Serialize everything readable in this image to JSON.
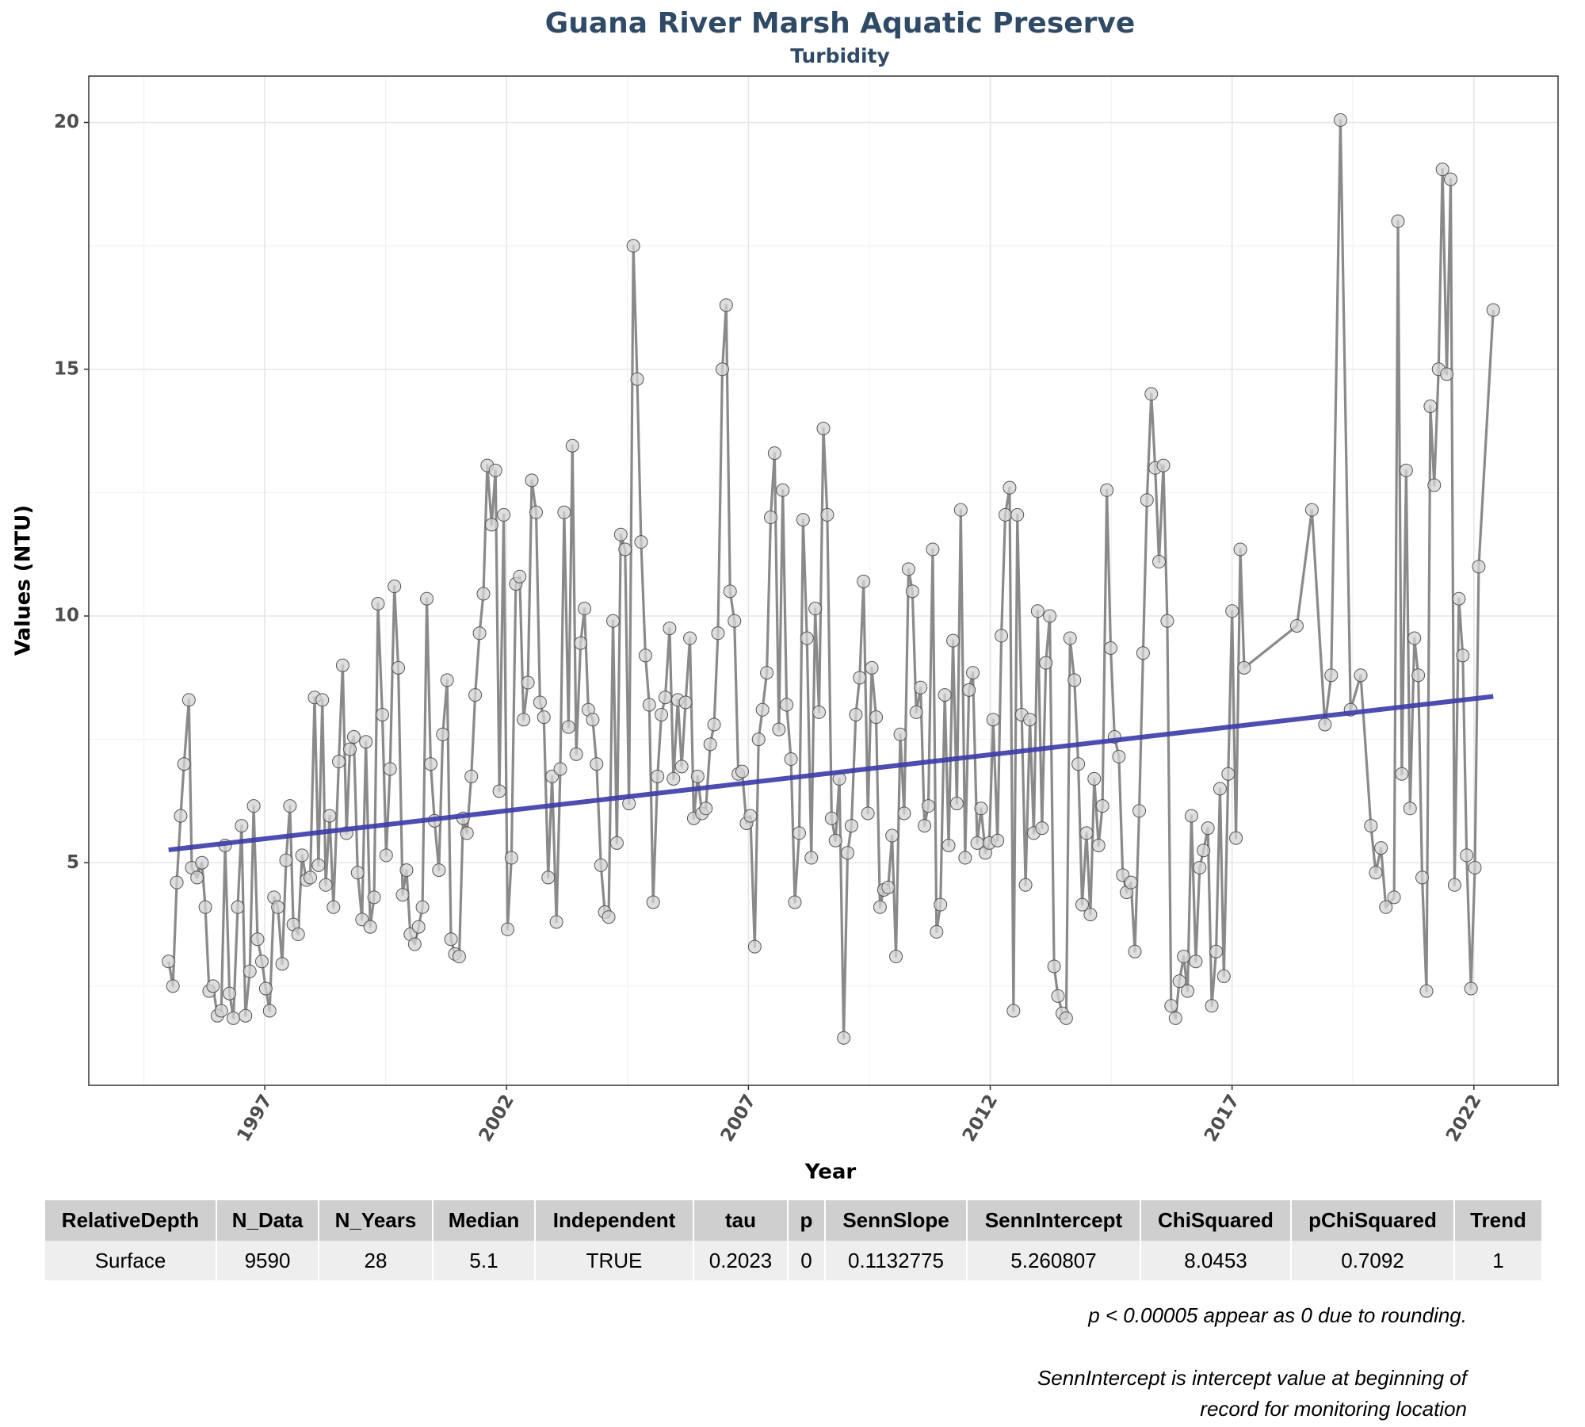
{
  "chart_data": {
    "type": "line",
    "title": "Guana River Marsh Aquatic Preserve",
    "subtitle": "Turbidity",
    "x_label": "Year",
    "y_label": "Values (NTU)",
    "color": "#8a8a8a",
    "marker_color": "#d3d3d3",
    "grid": true,
    "xlim": [
      1993.36,
      2023.74
    ],
    "ylim": [
      0.49,
      20.94
    ],
    "xticks": [
      1997,
      2002,
      2007,
      2012,
      2017,
      2022
    ],
    "yticks": [
      5,
      10,
      15,
      20
    ],
    "x": [
      1995.01,
      1995.1,
      1995.18,
      1995.26,
      1995.33,
      1995.43,
      1995.49,
      1995.6,
      1995.7,
      1995.77,
      1995.85,
      1995.93,
      1996.02,
      1996.1,
      1996.18,
      1996.27,
      1996.35,
      1996.44,
      1996.52,
      1996.6,
      1996.69,
      1996.77,
      1996.85,
      1996.94,
      1997.02,
      1997.1,
      1997.19,
      1997.27,
      1997.36,
      1997.44,
      1997.52,
      1997.59,
      1997.69,
      1997.77,
      1997.86,
      1997.94,
      1998.03,
      1998.11,
      1998.19,
      1998.26,
      1998.34,
      1998.42,
      1998.53,
      1998.61,
      1998.69,
      1998.76,
      1998.84,
      1998.92,
      1999.01,
      1999.09,
      1999.18,
      1999.26,
      1999.34,
      1999.43,
      1999.51,
      1999.59,
      1999.68,
      1999.76,
      1999.85,
      1999.93,
      2000.01,
      2000.1,
      2000.18,
      2000.26,
      2000.35,
      2000.43,
      2000.51,
      2000.6,
      2000.68,
      2000.77,
      2000.85,
      2000.93,
      2001.02,
      2001.1,
      2001.18,
      2001.27,
      2001.35,
      2001.44,
      2001.52,
      2001.6,
      2001.69,
      2001.77,
      2001.85,
      2001.94,
      2002.02,
      2002.1,
      2002.19,
      2002.27,
      2002.35,
      2002.44,
      2002.52,
      2002.61,
      2002.69,
      2002.77,
      2002.86,
      2002.94,
      2003.03,
      2003.11,
      2003.19,
      2003.28,
      2003.36,
      2003.44,
      2003.53,
      2003.61,
      2003.69,
      2003.78,
      2003.86,
      2003.95,
      2004.03,
      2004.11,
      2004.2,
      2004.28,
      2004.36,
      2004.45,
      2004.53,
      2004.62,
      2004.7,
      2004.78,
      2004.87,
      2004.95,
      2005.03,
      2005.12,
      2005.2,
      2005.28,
      2005.37,
      2005.45,
      2005.54,
      2005.62,
      2005.7,
      2005.79,
      2005.87,
      2005.95,
      2006.04,
      2006.12,
      2006.21,
      2006.29,
      2006.37,
      2006.46,
      2006.54,
      2006.62,
      2006.71,
      2006.79,
      2006.87,
      2006.96,
      2007.04,
      2007.13,
      2007.21,
      2007.29,
      2007.38,
      2007.46,
      2007.54,
      2007.63,
      2007.71,
      2007.79,
      2007.88,
      2007.96,
      2008.05,
      2008.13,
      2008.21,
      2008.3,
      2008.38,
      2008.46,
      2008.55,
      2008.63,
      2008.72,
      2008.8,
      2008.88,
      2008.97,
      2009.05,
      2009.13,
      2009.22,
      2009.3,
      2009.38,
      2009.47,
      2009.55,
      2009.64,
      2009.72,
      2009.8,
      2009.89,
      2009.97,
      2010.05,
      2010.14,
      2010.22,
      2010.31,
      2010.39,
      2010.47,
      2010.56,
      2010.64,
      2010.72,
      2010.81,
      2010.89,
      2010.97,
      2011.06,
      2011.14,
      2011.23,
      2011.31,
      2011.39,
      2011.48,
      2011.56,
      2011.64,
      2011.73,
      2011.81,
      2011.9,
      2011.98,
      2012.06,
      2012.15,
      2012.23,
      2012.31,
      2012.4,
      2012.48,
      2012.56,
      2012.65,
      2012.73,
      2012.82,
      2012.9,
      2012.98,
      2013.07,
      2013.15,
      2013.23,
      2013.32,
      2013.4,
      2013.49,
      2013.57,
      2013.65,
      2013.74,
      2013.82,
      2013.9,
      2013.99,
      2014.07,
      2014.15,
      2014.24,
      2014.32,
      2014.41,
      2014.49,
      2014.57,
      2014.66,
      2014.74,
      2014.82,
      2014.91,
      2014.99,
      2015.08,
      2015.16,
      2015.24,
      2015.33,
      2015.41,
      2015.49,
      2015.58,
      2015.66,
      2015.74,
      2015.83,
      2015.91,
      2016.0,
      2016.08,
      2016.16,
      2016.25,
      2016.33,
      2016.41,
      2016.5,
      2016.58,
      2016.67,
      2016.75,
      2016.83,
      2016.92,
      2017.0,
      2017.08,
      2017.17,
      2017.25,
      2018.34,
      2018.65,
      2018.92,
      2019.05,
      2019.24,
      2019.45,
      2019.66,
      2019.87,
      2019.97,
      2020.08,
      2020.18,
      2020.35,
      2020.43,
      2020.51,
      2020.6,
      2020.68,
      2020.77,
      2020.85,
      2020.93,
      2021.02,
      2021.1,
      2021.18,
      2021.27,
      2021.35,
      2021.44,
      2021.52,
      2021.6,
      2021.69,
      2021.77,
      2021.85,
      2021.94,
      2022.02,
      2022.1,
      2022.4
    ],
    "values": [
      3.0,
      2.5,
      4.6,
      5.95,
      7.0,
      8.3,
      4.9,
      4.7,
      5.0,
      4.1,
      2.4,
      2.5,
      1.9,
      2.0,
      5.35,
      2.35,
      1.85,
      4.1,
      5.75,
      1.9,
      2.8,
      6.15,
      3.45,
      3.0,
      2.45,
      2.0,
      4.3,
      4.1,
      2.95,
      5.05,
      6.15,
      3.75,
      3.55,
      5.15,
      4.65,
      4.7,
      8.35,
      4.95,
      8.3,
      4.55,
      5.95,
      4.1,
      7.05,
      9.0,
      5.6,
      7.3,
      7.55,
      4.8,
      3.85,
      7.45,
      3.7,
      4.3,
      10.25,
      8.0,
      5.15,
      6.9,
      10.6,
      8.95,
      4.35,
      4.85,
      3.55,
      3.35,
      3.7,
      4.1,
      10.35,
      7.0,
      5.85,
      4.85,
      7.6,
      8.7,
      3.45,
      3.15,
      3.1,
      5.9,
      5.6,
      6.75,
      8.4,
      9.65,
      10.45,
      13.05,
      11.85,
      12.95,
      6.45,
      12.05,
      3.65,
      5.1,
      10.65,
      10.8,
      7.9,
      8.65,
      12.75,
      12.1,
      8.25,
      7.95,
      4.7,
      6.75,
      3.8,
      6.9,
      12.1,
      7.75,
      13.45,
      7.2,
      9.45,
      10.15,
      8.1,
      7.9,
      7.0,
      4.95,
      4.0,
      3.9,
      9.9,
      5.4,
      11.65,
      11.35,
      6.2,
      17.5,
      14.8,
      11.5,
      9.2,
      8.2,
      4.2,
      6.75,
      8.0,
      8.35,
      9.75,
      6.7,
      8.3,
      6.95,
      8.25,
      9.55,
      5.9,
      6.75,
      6.0,
      6.1,
      7.4,
      7.8,
      9.65,
      15.0,
      16.3,
      10.5,
      9.9,
      6.8,
      6.85,
      5.8,
      5.95,
      3.3,
      7.5,
      8.1,
      8.85,
      12.0,
      13.3,
      7.7,
      12.55,
      8.2,
      7.1,
      4.2,
      5.6,
      11.95,
      9.55,
      5.1,
      10.15,
      8.05,
      13.8,
      12.05,
      5.9,
      5.45,
      6.7,
      1.45,
      5.2,
      5.75,
      8.0,
      8.75,
      10.7,
      6.0,
      8.95,
      7.95,
      4.1,
      4.45,
      4.5,
      5.55,
      3.1,
      7.6,
      6.0,
      10.95,
      10.5,
      8.05,
      8.55,
      5.75,
      6.15,
      11.35,
      3.6,
      4.15,
      8.4,
      5.35,
      9.5,
      6.2,
      12.15,
      5.1,
      8.5,
      8.85,
      5.4,
      6.1,
      5.2,
      5.4,
      7.9,
      5.45,
      9.6,
      12.05,
      12.6,
      2.0,
      12.05,
      8.0,
      4.55,
      7.9,
      5.6,
      10.1,
      5.7,
      9.05,
      10.0,
      2.9,
      2.3,
      1.95,
      1.85,
      9.55,
      8.7,
      7.0,
      4.15,
      5.6,
      3.95,
      6.7,
      5.35,
      6.15,
      12.55,
      9.35,
      7.55,
      7.15,
      4.75,
      4.4,
      4.6,
      3.2,
      6.05,
      9.25,
      12.35,
      14.5,
      13.0,
      11.1,
      13.05,
      9.9,
      2.1,
      1.85,
      2.6,
      3.1,
      2.4,
      5.95,
      3.0,
      4.9,
      5.25,
      5.7,
      2.1,
      3.2,
      6.5,
      2.7,
      6.8,
      10.1,
      5.5,
      11.35,
      8.95,
      9.8,
      12.15,
      7.8,
      8.8,
      20.05,
      8.1,
      8.8,
      5.75,
      4.8,
      5.3,
      4.1,
      4.3,
      18.0,
      6.8,
      12.95,
      6.1,
      9.55,
      8.8,
      4.7,
      2.4,
      14.25,
      12.65,
      15.0,
      19.05,
      14.9,
      18.85,
      4.55,
      10.35,
      9.2,
      5.15,
      2.45,
      4.9,
      11.0,
      16.2
    ],
    "trend": {
      "color": "#3a3aaa",
      "x": [
        1995.01,
        2022.4
      ],
      "values": [
        5.26,
        8.37
      ]
    }
  },
  "table": {
    "columns": [
      "RelativeDepth",
      "N_Data",
      "N_Years",
      "Median",
      "Independent",
      "tau",
      "p",
      "SennSlope",
      "SennIntercept",
      "ChiSquared",
      "pChiSquared",
      "Trend"
    ],
    "rows": [
      [
        "Surface",
        9590,
        28,
        5.1,
        "TRUE",
        0.2023,
        0,
        0.1132775,
        5.260807,
        8.0453,
        0.7092,
        1
      ]
    ]
  },
  "notes": [
    "p < 0.00005 appear as 0 due to rounding.",
    "SennIntercept is intercept value at beginning of record for monitoring location"
  ]
}
